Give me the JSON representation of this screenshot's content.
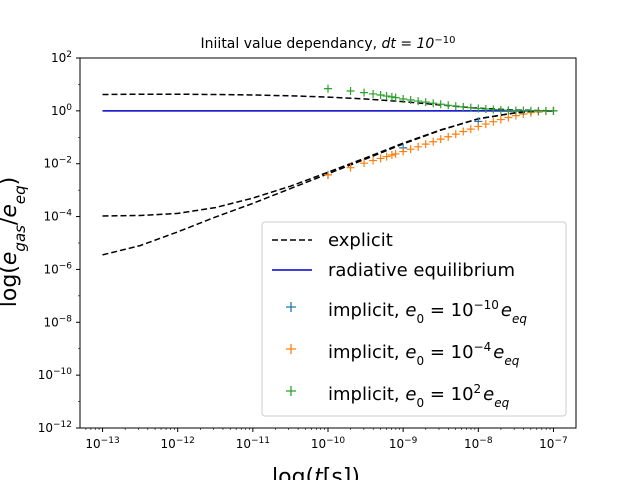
{
  "chart_data": {
    "type": "scatter",
    "title": "Iniital value dependancy, dt = 10⁻¹⁰",
    "title_parts": {
      "text": "Iniital value dependancy, ",
      "math_base": "dt = 10",
      "math_exp": "−10"
    },
    "xlabel": {
      "base": "log(",
      "italic": "t",
      "rest": "[s])"
    },
    "ylabel": {
      "prefix": "log(",
      "var": "e",
      "sub1": "gas",
      "slash": "/",
      "var2": "e",
      "sub2": "eq",
      "suffix": ")"
    },
    "xscale": "log",
    "yscale": "log",
    "xlim_exp": [
      -13.3,
      -6.7
    ],
    "ylim_exp": [
      -12,
      2
    ],
    "x_ticks": [
      {
        "base": "10",
        "exp": "−13",
        "v": -13
      },
      {
        "base": "10",
        "exp": "−12",
        "v": -12
      },
      {
        "base": "10",
        "exp": "−11",
        "v": -11
      },
      {
        "base": "10",
        "exp": "−10",
        "v": -10
      },
      {
        "base": "10",
        "exp": "−9",
        "v": -9
      },
      {
        "base": "10",
        "exp": "−8",
        "v": -8
      },
      {
        "base": "10",
        "exp": "−7",
        "v": -7
      }
    ],
    "y_ticks": [
      {
        "base": "10",
        "exp": "2",
        "v": 2
      },
      {
        "base": "10",
        "exp": "0",
        "v": 0
      },
      {
        "base": "10",
        "exp": "−2",
        "v": -2
      },
      {
        "base": "10",
        "exp": "−4",
        "v": -4
      },
      {
        "base": "10",
        "exp": "−6",
        "v": -6
      },
      {
        "base": "10",
        "exp": "−8",
        "v": -8
      },
      {
        "base": "10",
        "exp": "−10",
        "v": -10
      },
      {
        "base": "10",
        "exp": "−12",
        "v": -12
      }
    ],
    "grid": false,
    "legend_position": "lower-right",
    "series": [
      {
        "name": "explicit",
        "kind": "line",
        "style": "dashed",
        "color": "#000000",
        "curves": [
          {
            "x_exp": [
              -13,
              -12.5,
              -12,
              -11.5,
              -11,
              -10.5,
              -10,
              -9.5,
              -9,
              -8.5,
              -8,
              -7.5,
              -7
            ],
            "y_exp": [
              0.62,
              0.63,
              0.63,
              0.62,
              0.6,
              0.57,
              0.52,
              0.45,
              0.35,
              0.22,
              0.1,
              0.03,
              0.0
            ]
          },
          {
            "x_exp": [
              -13,
              -12.5,
              -12,
              -11.5,
              -11,
              -10.5,
              -10,
              -9.5,
              -9,
              -8.5,
              -8,
              -7.5,
              -7
            ],
            "y_exp": [
              -3.98,
              -3.96,
              -3.88,
              -3.66,
              -3.3,
              -2.85,
              -2.32,
              -1.78,
              -1.22,
              -0.72,
              -0.3,
              -0.07,
              0.0
            ]
          },
          {
            "x_exp": [
              -13,
              -12.5,
              -12,
              -11.5,
              -11,
              -10.5,
              -10,
              -9.5,
              -9,
              -8.5,
              -8,
              -7.5,
              -7
            ],
            "y_exp": [
              -5.45,
              -5.1,
              -4.58,
              -4.02,
              -3.5,
              -2.94,
              -2.38,
              -1.82,
              -1.25,
              -0.73,
              -0.3,
              -0.07,
              0.0
            ]
          }
        ]
      },
      {
        "name": "radiative equilibrium",
        "kind": "line",
        "style": "solid",
        "color": "#0000cc",
        "curves": [
          {
            "x_exp": [
              -13,
              -7
            ],
            "y_exp": [
              0,
              0
            ]
          }
        ]
      },
      {
        "name": "implicit, e0 = 10⁻¹⁰ e_eq",
        "legend_parts": {
          "text": "implicit, ",
          "lhs": "e",
          "lhs_sub": "0",
          "mid": " = 10",
          "exp": "−10",
          "rhs": "e",
          "rhs_sub": "eq"
        },
        "kind": "marker",
        "marker": "+",
        "color": "#1f77b4",
        "x_exp": [
          -10,
          -9,
          -8,
          -7
        ],
        "y_exp": [
          -2.42,
          -1.4,
          -0.4,
          0.0
        ]
      },
      {
        "name": "implicit, e0 = 10⁻⁴ e_eq",
        "legend_parts": {
          "text": "implicit, ",
          "lhs": "e",
          "lhs_sub": "0",
          "mid": " = 10",
          "exp": "−4",
          "rhs": "e",
          "rhs_sub": "eq"
        },
        "kind": "marker",
        "marker": "+",
        "color": "#ff7f0e",
        "x_exp": [
          -10,
          -9.7,
          -9.52,
          -9.4,
          -9.3,
          -9.22,
          -9.15,
          -9.1,
          -9.0,
          -8.9,
          -8.8,
          -8.7,
          -8.6,
          -8.5,
          -8.4,
          -8.3,
          -8.2,
          -8.1,
          -8.0,
          -7.9,
          -7.8,
          -7.7,
          -7.6,
          -7.5,
          -7.4,
          -7.3,
          -7.2,
          -7.1,
          -7.0
        ],
        "y_exp": [
          -2.42,
          -2.15,
          -1.98,
          -1.88,
          -1.8,
          -1.73,
          -1.67,
          -1.63,
          -1.54,
          -1.45,
          -1.36,
          -1.26,
          -1.17,
          -1.07,
          -0.98,
          -0.88,
          -0.78,
          -0.69,
          -0.59,
          -0.5,
          -0.41,
          -0.33,
          -0.25,
          -0.18,
          -0.12,
          -0.07,
          -0.03,
          -0.01,
          0.0
        ]
      },
      {
        "name": "implicit, e0 = 10² e_eq",
        "legend_parts": {
          "text": "implicit, ",
          "lhs": "e",
          "lhs_sub": "0",
          "mid": " = 10",
          "exp": "2",
          "rhs": "e",
          "rhs_sub": "eq"
        },
        "kind": "marker",
        "marker": "+",
        "color": "#2ca02c",
        "x_exp": [
          -10,
          -9.7,
          -9.52,
          -9.4,
          -9.3,
          -9.22,
          -9.15,
          -9.1,
          -9.0,
          -8.9,
          -8.8,
          -8.7,
          -8.6,
          -8.5,
          -8.4,
          -8.3,
          -8.2,
          -8.1,
          -8.0,
          -7.9,
          -7.8,
          -7.7,
          -7.6,
          -7.5,
          -7.4,
          -7.3,
          -7.2,
          -7.1,
          -7.0
        ],
        "y_exp": [
          0.84,
          0.75,
          0.69,
          0.64,
          0.6,
          0.56,
          0.53,
          0.5,
          0.45,
          0.41,
          0.37,
          0.33,
          0.29,
          0.25,
          0.21,
          0.18,
          0.15,
          0.12,
          0.09,
          0.07,
          0.05,
          0.035,
          0.022,
          0.013,
          0.007,
          0.003,
          0.001,
          0.0,
          0.0
        ]
      }
    ]
  }
}
